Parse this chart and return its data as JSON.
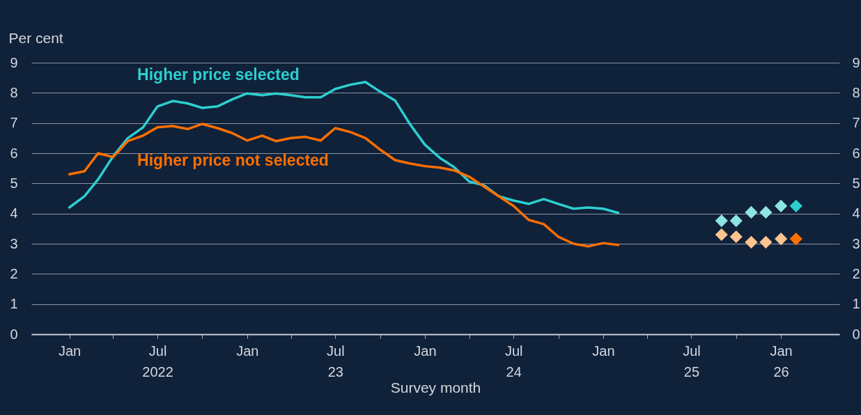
{
  "chart_data": {
    "type": "line",
    "ylabel": "Per cent",
    "xlabel": "Survey month",
    "xlim": [
      "2021-10-15",
      "2026-05-01"
    ],
    "xticks": [
      {
        "value": "2022-01",
        "label": "Jan"
      },
      {
        "value": "2022-04",
        "label": null
      },
      {
        "value": "2022-07",
        "label": "Jul\n2022"
      },
      {
        "value": "2022-10",
        "label": null
      },
      {
        "value": "2023-01",
        "label": "Jan"
      },
      {
        "value": "2023-04",
        "label": null
      },
      {
        "value": "2023-07",
        "label": "Jul\n23"
      },
      {
        "value": "2023-10",
        "label": null
      },
      {
        "value": "2024-01",
        "label": "Jan"
      },
      {
        "value": "2024-04",
        "label": null
      },
      {
        "value": "2024-07",
        "label": "Jul\n24"
      },
      {
        "value": "2024-10",
        "label": null
      },
      {
        "value": "2025-01",
        "label": "Jan"
      },
      {
        "value": "2025-04",
        "label": null
      },
      {
        "value": "2025-07",
        "label": "Jul\n25"
      },
      {
        "value": "2025-10",
        "label": null
      },
      {
        "value": "2026-01",
        "label": "Jan\n26"
      }
    ],
    "ylim": [
      0,
      9
    ],
    "yticks": [
      0,
      1,
      2,
      3,
      4,
      5,
      6,
      7,
      8,
      9
    ],
    "y2lim": [
      0,
      9
    ],
    "y2ticks": [
      0,
      1,
      2,
      3,
      4,
      5,
      6,
      7,
      8,
      9
    ],
    "grid": "y",
    "line_style": "solid",
    "series": [
      {
        "name": "Higher price selected",
        "marker": "none",
        "color": "#2ccfcf",
        "x": [
          "2022-01",
          "2022-02",
          "2022-03",
          "2022-04",
          "2022-05",
          "2022-06",
          "2022-07",
          "2022-08",
          "2022-09",
          "2022-10",
          "2022-11",
          "2022-12",
          "2023-01",
          "2023-02",
          "2023-03",
          "2023-04",
          "2023-05",
          "2023-06",
          "2023-07",
          "2023-08",
          "2023-09",
          "2023-10",
          "2023-11",
          "2023-12",
          "2024-01",
          "2024-02",
          "2024-03",
          "2024-04",
          "2024-05",
          "2024-06",
          "2024-07",
          "2024-08",
          "2024-09",
          "2024-10",
          "2024-11",
          "2024-12",
          "2025-01",
          "2025-02"
        ],
        "values": [
          4.2,
          4.57,
          5.13,
          5.9,
          6.5,
          6.85,
          7.55,
          7.73,
          7.65,
          7.5,
          7.55,
          7.78,
          7.98,
          7.92,
          7.98,
          7.92,
          7.85,
          7.85,
          8.13,
          8.27,
          8.36,
          8.04,
          7.74,
          6.97,
          6.28,
          5.84,
          5.54,
          5.06,
          4.94,
          4.57,
          4.43,
          4.32,
          4.48,
          4.32,
          4.16,
          4.2,
          4.16,
          4.02
        ]
      },
      {
        "name": "Higher price not selected",
        "marker": "none",
        "color": "#ff6f00",
        "x": [
          "2022-01",
          "2022-02",
          "2022-03",
          "2022-04",
          "2022-05",
          "2022-06",
          "2022-07",
          "2022-08",
          "2022-09",
          "2022-10",
          "2022-11",
          "2022-12",
          "2023-01",
          "2023-02",
          "2023-03",
          "2023-04",
          "2023-05",
          "2023-06",
          "2023-07",
          "2023-08",
          "2023-09",
          "2023-10",
          "2023-11",
          "2023-12",
          "2024-01",
          "2024-02",
          "2024-03",
          "2024-04",
          "2024-05",
          "2024-06",
          "2024-07",
          "2024-08",
          "2024-09",
          "2024-10",
          "2024-11",
          "2024-12",
          "2025-01",
          "2025-02"
        ],
        "values": [
          5.3,
          5.4,
          6.0,
          5.87,
          6.4,
          6.58,
          6.86,
          6.9,
          6.8,
          6.97,
          6.83,
          6.67,
          6.42,
          6.58,
          6.4,
          6.5,
          6.54,
          6.42,
          6.83,
          6.7,
          6.5,
          6.12,
          5.77,
          5.66,
          5.57,
          5.52,
          5.43,
          5.22,
          4.9,
          4.57,
          4.25,
          3.79,
          3.65,
          3.23,
          3.0,
          2.91,
          3.02,
          2.96
        ]
      },
      {
        "type": "scatter",
        "marker": "diamond",
        "colors": [
          "#8ee3e3",
          "#8ee3e3",
          "#8ee3e3",
          "#8ee3e3",
          "#8ee3e3",
          "#2ccfcf"
        ],
        "x": [
          "2025-09",
          "2025-10",
          "2025-11",
          "2025-12",
          "2026-01",
          "2026-02"
        ],
        "values": [
          3.76,
          3.76,
          4.04,
          4.04,
          4.25,
          4.25
        ]
      },
      {
        "type": "scatter",
        "marker": "diamond",
        "colors": [
          "#ffc38f",
          "#ffc38f",
          "#ffc38f",
          "#ffc38f",
          "#ffc38f",
          "#ff6f00"
        ],
        "x": [
          "2025-09",
          "2025-10",
          "2025-11",
          "2025-12",
          "2026-01",
          "2026-02"
        ],
        "values": [
          3.3,
          3.23,
          3.05,
          3.05,
          3.16,
          3.16
        ]
      }
    ]
  }
}
